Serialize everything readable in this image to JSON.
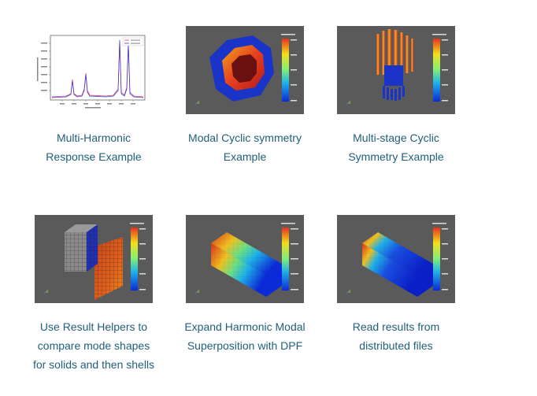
{
  "cards": [
    {
      "caption": [
        "Multi-Harmonic",
        "Response Example"
      ],
      "thumbnail": "harmonic-frequency-plot"
    },
    {
      "caption": [
        "Modal Cyclic symmetry",
        "Example"
      ],
      "thumbnail": "cyclic-ring-contour"
    },
    {
      "caption": [
        "Multi-stage Cyclic",
        "Symmetry Example"
      ],
      "thumbnail": "multistage-rotor-contour"
    },
    {
      "caption": [
        "Use Result Helpers to",
        "compare mode shapes",
        "for solids and then shells"
      ],
      "thumbnail": "solid-and-shell-contour"
    },
    {
      "caption": [
        "Expand Harmonic Modal",
        "Superposition with DPF"
      ],
      "thumbnail": "box-contour-rainbow"
    },
    {
      "caption": [
        "Read results from",
        "distributed files"
      ],
      "thumbnail": "box-contour-blue"
    }
  ],
  "colors": {
    "caption_text": "#1f5f7a",
    "viewport_bg": "#5a5a5a"
  }
}
